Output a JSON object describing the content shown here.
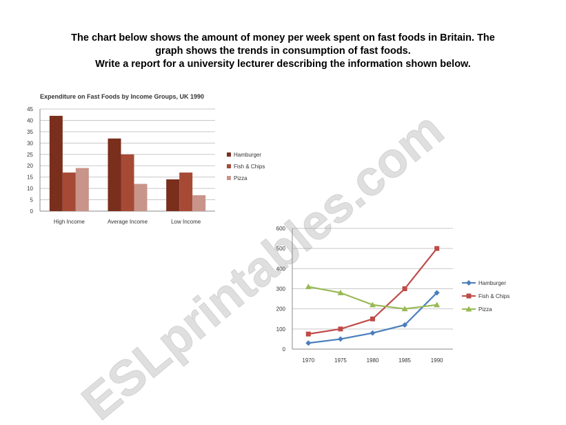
{
  "header": {
    "line1": "The chart below shows the amount of money per week spent on fast foods in Britain. The",
    "line2": "graph shows the trends in consumption of fast foods.",
    "line3": "Write a report for a university lecturer describing the information shown below."
  },
  "watermark": {
    "text": "ESLprintables.com"
  },
  "chart_data": [
    {
      "type": "bar",
      "title": "Expenditure on Fast Foods by Income Groups, UK 1990",
      "categories": [
        "High Income",
        "Average Income",
        "Low Income"
      ],
      "series": [
        {
          "name": "Hamburger",
          "values": [
            42,
            32,
            14
          ],
          "color": "#7a2e1c"
        },
        {
          "name": "Fish & Chips",
          "values": [
            17,
            25,
            17
          ],
          "color": "#a64a36"
        },
        {
          "name": "Pizza",
          "values": [
            19,
            12,
            7
          ],
          "color": "#c9948a"
        }
      ],
      "ylim": [
        0,
        45
      ],
      "yticks": [
        0,
        5,
        10,
        15,
        20,
        25,
        30,
        35,
        40,
        45
      ],
      "grid": true,
      "legend": "right"
    },
    {
      "type": "line",
      "x": [
        1970,
        1975,
        1980,
        1985,
        1990
      ],
      "series": [
        {
          "name": "Hamburger",
          "values": [
            30,
            50,
            80,
            120,
            280
          ],
          "color": "#4a7ebb",
          "marker": "diamond"
        },
        {
          "name": "Fish & Chips",
          "values": [
            75,
            100,
            150,
            300,
            500
          ],
          "color": "#be4b48",
          "marker": "square"
        },
        {
          "name": "Pizza",
          "values": [
            310,
            280,
            220,
            200,
            220
          ],
          "color": "#98b954",
          "marker": "triangle"
        }
      ],
      "ylim": [
        0,
        600
      ],
      "yticks": [
        0,
        100,
        200,
        300,
        400,
        500,
        600
      ],
      "grid": true,
      "legend": "right"
    }
  ]
}
